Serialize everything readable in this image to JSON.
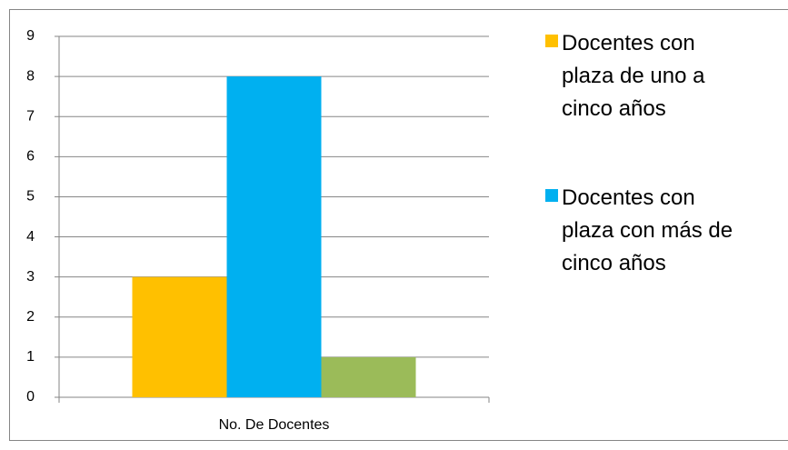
{
  "chart_data": {
    "type": "bar",
    "categories": [
      "No. De Docentes"
    ],
    "series": [
      {
        "name": "Docentes con plaza de uno a cinco años",
        "color": "#ffc000",
        "values": [
          3
        ]
      },
      {
        "name": "Docentes con plaza con más de cinco años",
        "color": "#00b0f0",
        "values": [
          8
        ]
      },
      {
        "name": null,
        "color": "#9bbb59",
        "values": [
          1
        ]
      }
    ],
    "ylim": [
      0,
      9
    ],
    "yticks": [
      0,
      1,
      2,
      3,
      4,
      5,
      6,
      7,
      8,
      9
    ],
    "grid": true,
    "legend": "right"
  }
}
